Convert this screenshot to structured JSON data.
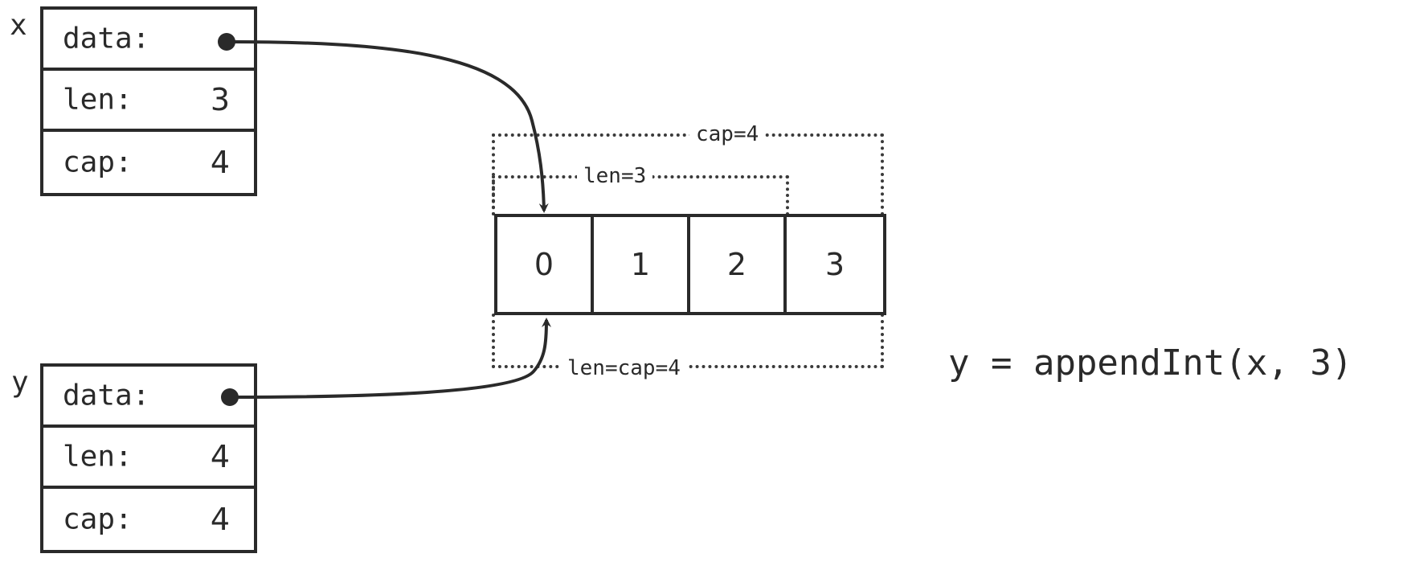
{
  "x": {
    "name": "x",
    "data_label": "data:",
    "len_label": "len:",
    "len_value": "3",
    "cap_label": "cap:",
    "cap_value": "4"
  },
  "y": {
    "name": "y",
    "data_label": "data:",
    "len_label": "len:",
    "len_value": "4",
    "cap_label": "cap:",
    "cap_value": "4"
  },
  "array": {
    "cells": [
      "0",
      "1",
      "2",
      "3"
    ]
  },
  "bounds": {
    "x_cap": "cap=4",
    "x_len": "len=3",
    "y_len_cap": "len=cap=4"
  },
  "code": "y = appendInt(x, 3)",
  "colors": {
    "ink": "#2a2a2a"
  }
}
